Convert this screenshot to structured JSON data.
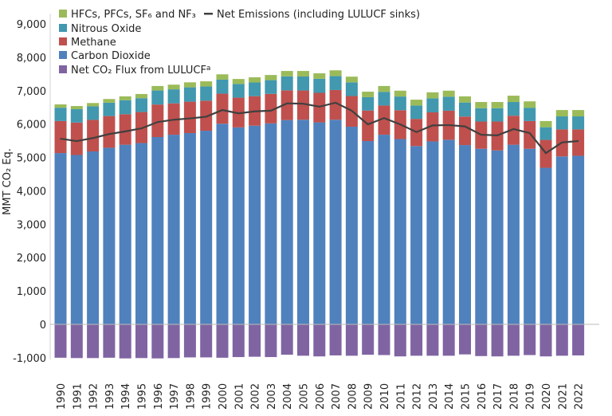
{
  "chart_data": {
    "type": "bar",
    "stacked": true,
    "title": "",
    "xlabel": "",
    "ylabel": "MMT CO₂ Eq.",
    "ylim": [
      -1000,
      9000
    ],
    "yticks": [
      -1000,
      0,
      1000,
      2000,
      3000,
      4000,
      5000,
      6000,
      7000,
      8000,
      9000
    ],
    "ytick_labels": [
      "-1,000",
      "0",
      "1,000",
      "2,000",
      "3,000",
      "4,000",
      "5,000",
      "6,000",
      "7,000",
      "8,000",
      "9,000"
    ],
    "grid": false,
    "legend_position": "top-left",
    "categories": [
      "1990",
      "1991",
      "1992",
      "1993",
      "1994",
      "1995",
      "1996",
      "1997",
      "1998",
      "1999",
      "2000",
      "2001",
      "2002",
      "2003",
      "2004",
      "2005",
      "2006",
      "2007",
      "2008",
      "2009",
      "2010",
      "2011",
      "2012",
      "2013",
      "2014",
      "2015",
      "2016",
      "2017",
      "2018",
      "2019",
      "2020",
      "2021",
      "2022"
    ],
    "series": [
      {
        "name": "Net CO₂ Flux from LULUCF",
        "superscript": "a",
        "color": "#8064a2",
        "values": [
          -1000,
          -1010,
          -1010,
          -1000,
          -1020,
          -1010,
          -1020,
          -1010,
          -990,
          -990,
          -1000,
          -980,
          -970,
          -980,
          -910,
          -940,
          -960,
          -930,
          -940,
          -910,
          -920,
          -960,
          -940,
          -940,
          -940,
          -900,
          -950,
          -960,
          -940,
          -920,
          -960,
          -940,
          -930
        ]
      },
      {
        "name": "Carbon Dioxide",
        "color": "#4f81bd",
        "values": [
          5131,
          5073,
          5180,
          5290,
          5380,
          5430,
          5610,
          5680,
          5730,
          5800,
          6010,
          5900,
          5950,
          6020,
          6120,
          6130,
          6050,
          6130,
          5920,
          5490,
          5680,
          5550,
          5340,
          5480,
          5530,
          5370,
          5260,
          5210,
          5380,
          5260,
          4690,
          5030,
          5050
        ]
      },
      {
        "name": "Methane",
        "color": "#c0504d",
        "values": [
          959,
          972,
          945,
          950,
          915,
          930,
          975,
          940,
          940,
          900,
          900,
          890,
          885,
          885,
          890,
          875,
          885,
          890,
          920,
          915,
          875,
          865,
          815,
          870,
          870,
          855,
          815,
          865,
          870,
          830,
          835,
          810,
          790
        ]
      },
      {
        "name": "Nitrous Oxide",
        "color": "#4198af",
        "values": [
          400,
          400,
          405,
          400,
          420,
          415,
          420,
          420,
          430,
          425,
          420,
          410,
          410,
          410,
          420,
          420,
          420,
          420,
          410,
          400,
          410,
          410,
          400,
          420,
          420,
          420,
          400,
          400,
          410,
          400,
          380,
          390,
          390
        ]
      },
      {
        "name": "HFCs, PFCs, SF₆ and NF₃",
        "color": "#9bbb59",
        "values": [
          100,
          95,
          100,
          110,
          115,
          125,
          135,
          140,
          150,
          155,
          160,
          150,
          155,
          155,
          160,
          165,
          165,
          170,
          170,
          165,
          175,
          175,
          175,
          180,
          180,
          185,
          185,
          185,
          190,
          190,
          185,
          190,
          190
        ]
      }
    ],
    "line_series": {
      "name": "Net Emissions (including LULUCF sinks)",
      "color": "#404040",
      "values": [
        5560,
        5490,
        5580,
        5700,
        5780,
        5870,
        6060,
        6130,
        6170,
        6220,
        6420,
        6320,
        6380,
        6400,
        6620,
        6610,
        6520,
        6640,
        6400,
        5990,
        6180,
        5990,
        5760,
        5960,
        5970,
        5930,
        5680,
        5660,
        5850,
        5730,
        5130,
        5450,
        5490
      ]
    },
    "legend": [
      {
        "label": "HFCs, PFCs, SF₆ and NF₃",
        "color": "#9bbb59"
      },
      {
        "label": "Nitrous Oxide",
        "color": "#4198af"
      },
      {
        "label": "Methane",
        "color": "#c0504d"
      },
      {
        "label": "Carbon Dioxide",
        "color": "#4f81bd"
      },
      {
        "label": "Net CO₂ Flux from LULUCF",
        "sup": "a",
        "color": "#8064a2"
      },
      {
        "label": "Net Emissions (including LULUCF sinks)",
        "color": "#404040"
      }
    ]
  }
}
